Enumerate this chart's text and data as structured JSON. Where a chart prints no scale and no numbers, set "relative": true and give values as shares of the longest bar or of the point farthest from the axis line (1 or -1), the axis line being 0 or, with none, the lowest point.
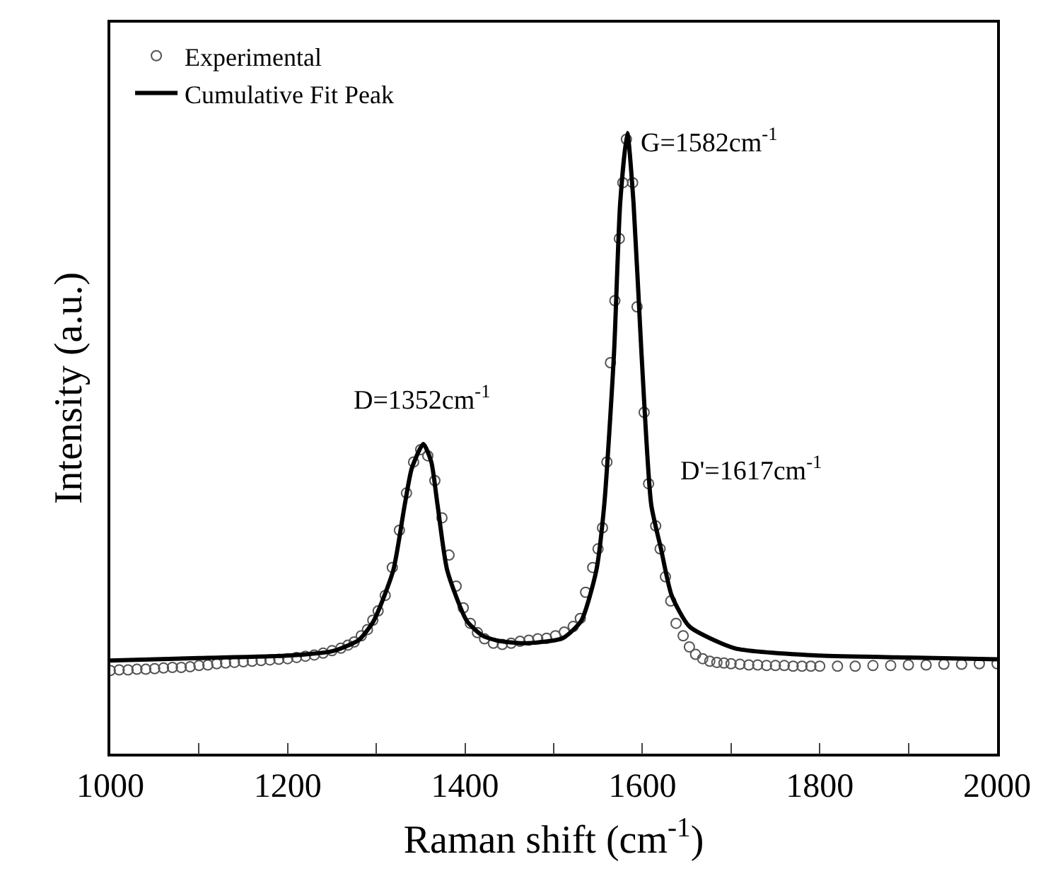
{
  "chart_data": {
    "type": "line",
    "relative": true,
    "xlabel": "Raman shift (cm$^{-1}$)",
    "ylabel": "Intensity (a.u.)",
    "xlim": [
      1000,
      2000
    ],
    "xticks": [
      1000,
      {
        "value": 1100,
        "label": null
      },
      1200,
      {
        "value": 1300,
        "label": null
      },
      1400,
      {
        "value": 1500,
        "label": null
      },
      1600,
      {
        "value": 1700,
        "label": null
      },
      1800,
      {
        "value": 1900,
        "label": null
      },
      2000
    ],
    "legend": "top left",
    "annotations": [
      {
        "text": "D=1352cm$^{-1}$",
        "x": 1352,
        "y": 0.499
      },
      {
        "text": "G=1582cm$^{-1}$",
        "x": 1582,
        "y": 1.0
      },
      {
        "text": "D'=1617cm$^{-1}$",
        "x": 1617,
        "y": 0.367
      }
    ],
    "series": [
      {
        "name": "Experimental",
        "type": "scatter",
        "marker": "circle",
        "color": "#555555",
        "x": [
          1000,
          1010,
          1020,
          1030,
          1040,
          1050,
          1060,
          1070,
          1080,
          1090,
          1100,
          1110,
          1120,
          1130,
          1140,
          1150,
          1160,
          1170,
          1180,
          1190,
          1200,
          1210,
          1220,
          1230,
          1240,
          1250,
          1260,
          1268,
          1275,
          1283,
          1290,
          1296,
          1302,
          1310,
          1318,
          1326,
          1334,
          1342,
          1350,
          1358,
          1366,
          1374,
          1382,
          1390,
          1398,
          1406,
          1414,
          1422,
          1432,
          1442,
          1452,
          1462,
          1472,
          1482,
          1492,
          1502,
          1512,
          1522,
          1530,
          1536,
          1544,
          1550,
          1555,
          1560,
          1564,
          1569,
          1574,
          1578,
          1582,
          1589,
          1594,
          1602,
          1607,
          1615,
          1620,
          1626,
          1632,
          1638,
          1646,
          1653,
          1660,
          1668,
          1676,
          1684,
          1692,
          1700,
          1710,
          1720,
          1730,
          1740,
          1750,
          1760,
          1770,
          1780,
          1790,
          1800,
          1820,
          1840,
          1860,
          1880,
          1900,
          1920,
          1940,
          1960,
          1980,
          2000
        ],
        "values": [
          0.134,
          0.135,
          0.135,
          0.136,
          0.136,
          0.137,
          0.138,
          0.139,
          0.139,
          0.14,
          0.142,
          0.143,
          0.145,
          0.146,
          0.147,
          0.148,
          0.149,
          0.15,
          0.151,
          0.152,
          0.153,
          0.155,
          0.157,
          0.159,
          0.162,
          0.166,
          0.17,
          0.175,
          0.18,
          0.19,
          0.2,
          0.215,
          0.23,
          0.255,
          0.3,
          0.36,
          0.42,
          0.47,
          0.49,
          0.48,
          0.44,
          0.38,
          0.32,
          0.27,
          0.235,
          0.21,
          0.195,
          0.185,
          0.178,
          0.176,
          0.178,
          0.181,
          0.183,
          0.185,
          0.186,
          0.19,
          0.196,
          0.205,
          0.218,
          0.26,
          0.3,
          0.33,
          0.364,
          0.47,
          0.63,
          0.73,
          0.83,
          0.92,
          0.99,
          0.92,
          0.72,
          0.55,
          0.435,
          0.367,
          0.33,
          0.285,
          0.246,
          0.21,
          0.19,
          0.172,
          0.16,
          0.153,
          0.149,
          0.147,
          0.146,
          0.145,
          0.144,
          0.143,
          0.143,
          0.142,
          0.142,
          0.142,
          0.141,
          0.141,
          0.141,
          0.141,
          0.141,
          0.141,
          0.142,
          0.142,
          0.143,
          0.143,
          0.144,
          0.144,
          0.145,
          0.145
        ]
      },
      {
        "name": "Cumulative Fit Peak",
        "marker": "none",
        "line_style": "solid",
        "color": "#000000",
        "x": [
          1000,
          1100,
          1200,
          1250,
          1280,
          1297,
          1319,
          1332,
          1340,
          1353,
          1362,
          1369,
          1380,
          1402,
          1420,
          1437,
          1466,
          1510,
          1531,
          1548,
          1557,
          1568,
          1575,
          1583,
          1590,
          1599,
          1610,
          1621,
          1633,
          1653,
          1704,
          1800,
          1900,
          2000
        ],
        "values": [
          0.15,
          0.154,
          0.158,
          0.165,
          0.183,
          0.214,
          0.295,
          0.401,
          0.46,
          0.499,
          0.47,
          0.401,
          0.295,
          0.214,
          0.19,
          0.182,
          0.178,
          0.186,
          0.214,
          0.295,
          0.401,
          0.645,
          0.888,
          1.0,
          0.888,
          0.645,
          0.401,
          0.33,
          0.255,
          0.205,
          0.17,
          0.158,
          0.155,
          0.152
        ]
      }
    ]
  }
}
